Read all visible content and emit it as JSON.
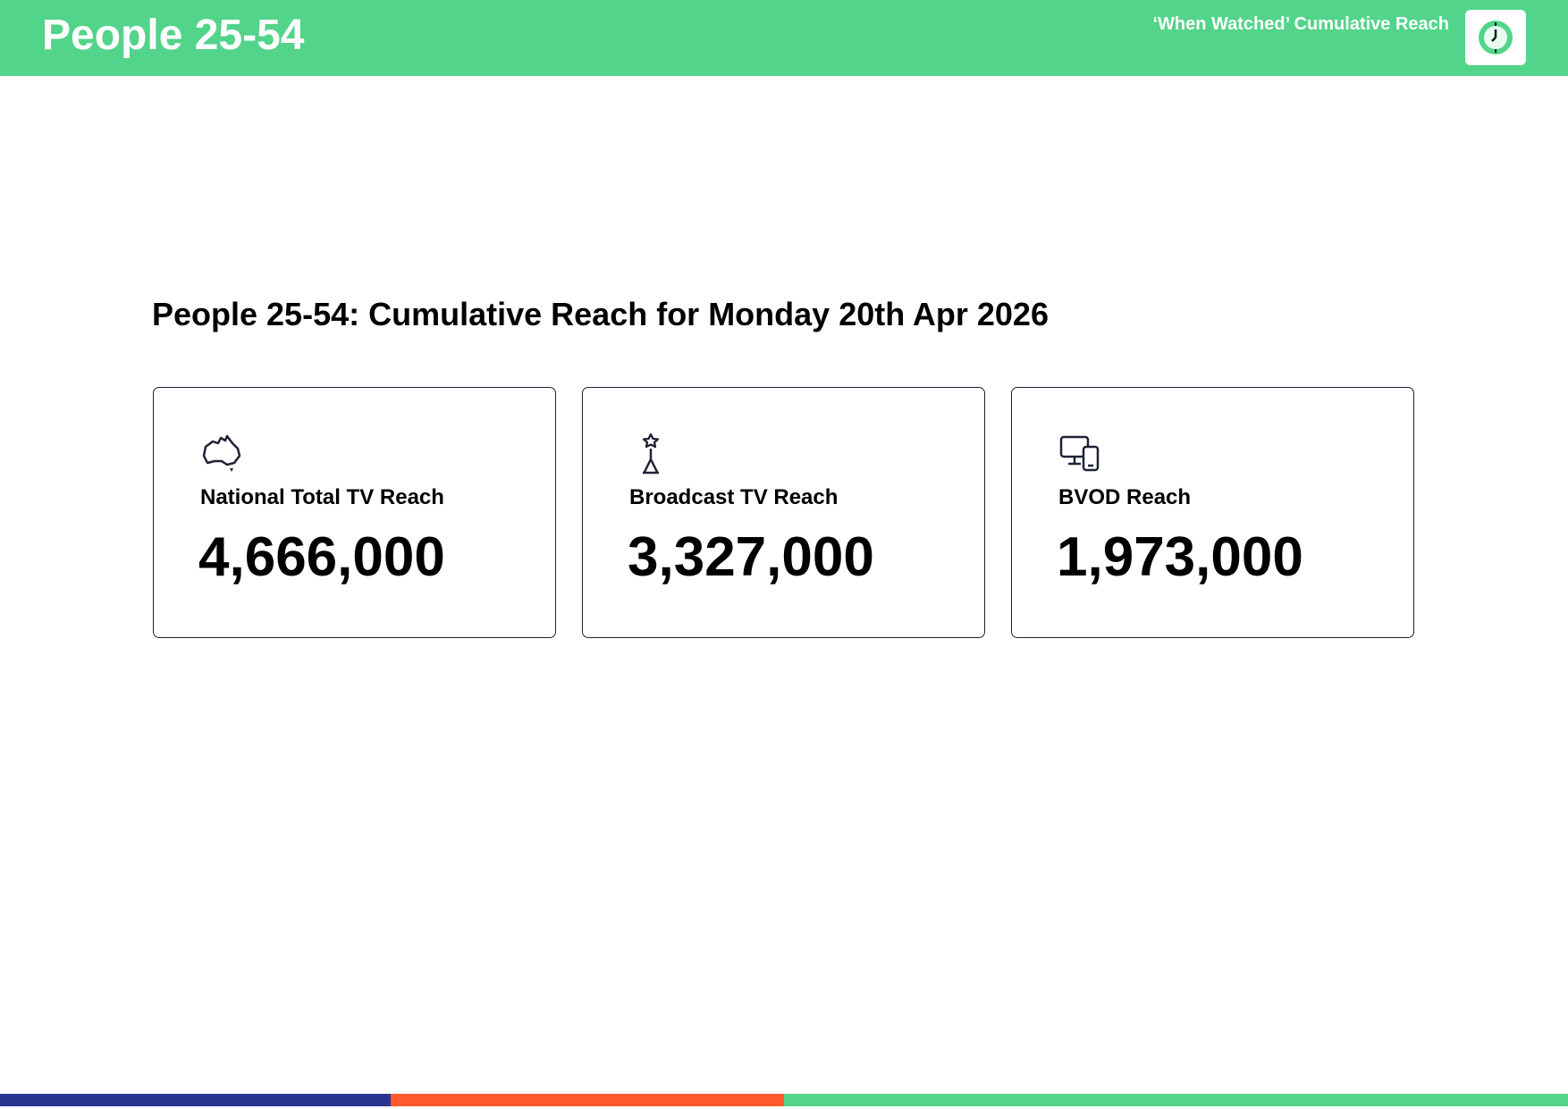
{
  "header": {
    "title": "People 25-54",
    "subtitle": "‘When Watched’ Cumulative Reach"
  },
  "heading": "People 25-54: Cumulative Reach for Monday 20th Apr 2026",
  "cards": [
    {
      "label": "National Total TV Reach",
      "value": "4,666,000"
    },
    {
      "label": "Broadcast TV Reach",
      "value": "3,327,000"
    },
    {
      "label": "BVOD Reach",
      "value": "1,973,000"
    }
  ]
}
